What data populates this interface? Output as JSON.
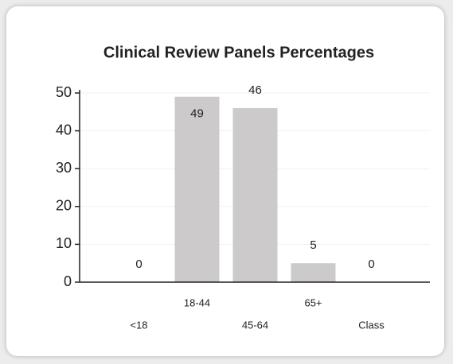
{
  "chart_data": {
    "type": "bar",
    "title": "Clinical Review Panels Percentages",
    "categories": [
      "<18",
      "18-44",
      "45-64",
      "65+",
      "Class"
    ],
    "values": [
      0,
      49,
      46,
      5,
      0
    ],
    "color": "#cccaca",
    "ylim": [
      0,
      50
    ],
    "yticks": [
      0,
      10,
      20,
      30,
      40,
      50
    ],
    "grid": true
  }
}
